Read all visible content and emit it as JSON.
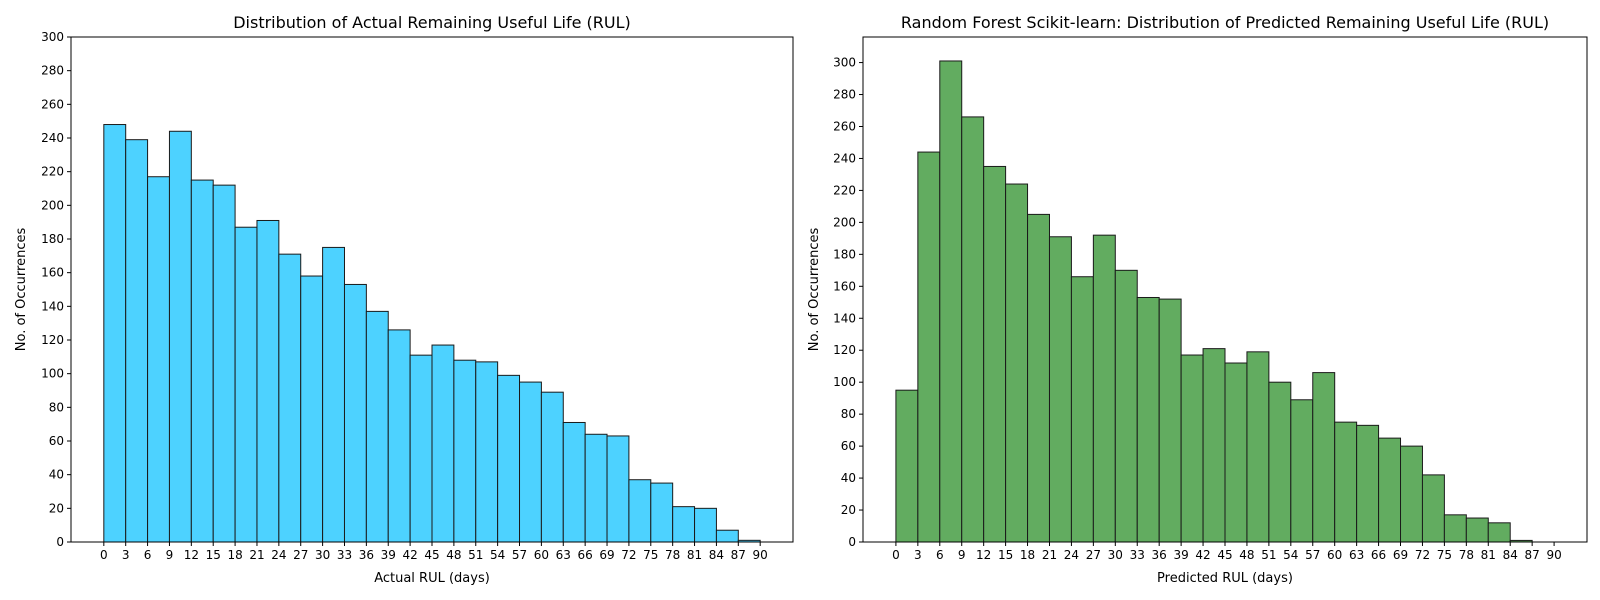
{
  "chart_data": [
    {
      "type": "bar",
      "title": "Distribution of Actual Remaining Useful Life (RUL)",
      "xlabel": "Actual RUL (days)",
      "ylabel": "No. of Occurrences",
      "bin_edges": [
        0,
        3,
        6,
        9,
        12,
        15,
        18,
        21,
        24,
        27,
        30,
        33,
        36,
        39,
        42,
        45,
        48,
        51,
        54,
        57,
        60,
        63,
        66,
        69,
        72,
        75,
        78,
        81,
        84,
        87,
        90
      ],
      "values": [
        248,
        239,
        217,
        244,
        215,
        212,
        187,
        191,
        171,
        158,
        175,
        153,
        137,
        126,
        111,
        117,
        108,
        107,
        99,
        95,
        89,
        71,
        64,
        63,
        37,
        35,
        21,
        20,
        7,
        1
      ],
      "xticks": [
        0,
        3,
        6,
        9,
        12,
        15,
        18,
        21,
        24,
        27,
        30,
        33,
        36,
        39,
        42,
        45,
        48,
        51,
        54,
        57,
        60,
        63,
        66,
        69,
        72,
        75,
        78,
        81,
        84,
        87,
        90
      ],
      "yticks": [
        0,
        20,
        40,
        60,
        80,
        100,
        120,
        140,
        160,
        180,
        200,
        220,
        240,
        260,
        280,
        300
      ],
      "xlim": [
        -4.5,
        94.5
      ],
      "ylim": [
        0,
        300
      ],
      "color": "#4dd2ff",
      "grid": false
    },
    {
      "type": "bar",
      "title": "Random Forest Scikit-learn: Distribution of Predicted Remaining Useful Life (RUL)",
      "xlabel": "Predicted RUL (days)",
      "ylabel": "No. of Occurrences",
      "bin_edges": [
        0,
        3,
        6,
        9,
        12,
        15,
        18,
        21,
        24,
        27,
        30,
        33,
        36,
        39,
        42,
        45,
        48,
        51,
        54,
        57,
        60,
        63,
        66,
        69,
        72,
        75,
        78,
        81,
        84,
        87,
        90
      ],
      "values": [
        95,
        244,
        301,
        266,
        235,
        224,
        205,
        191,
        166,
        192,
        170,
        153,
        152,
        117,
        121,
        112,
        119,
        100,
        89,
        106,
        75,
        73,
        65,
        60,
        42,
        17,
        15,
        12,
        1,
        0
      ],
      "xticks": [
        0,
        3,
        6,
        9,
        12,
        15,
        18,
        21,
        24,
        27,
        30,
        33,
        36,
        39,
        42,
        45,
        48,
        51,
        54,
        57,
        60,
        63,
        66,
        69,
        72,
        75,
        78,
        81,
        84,
        87,
        90
      ],
      "yticks": [
        0,
        20,
        40,
        60,
        80,
        100,
        120,
        140,
        160,
        180,
        200,
        220,
        240,
        260,
        280,
        300
      ],
      "xlim": [
        -4.5,
        94.5
      ],
      "ylim": [
        0,
        316
      ],
      "color": "#62ac60",
      "grid": false
    }
  ]
}
